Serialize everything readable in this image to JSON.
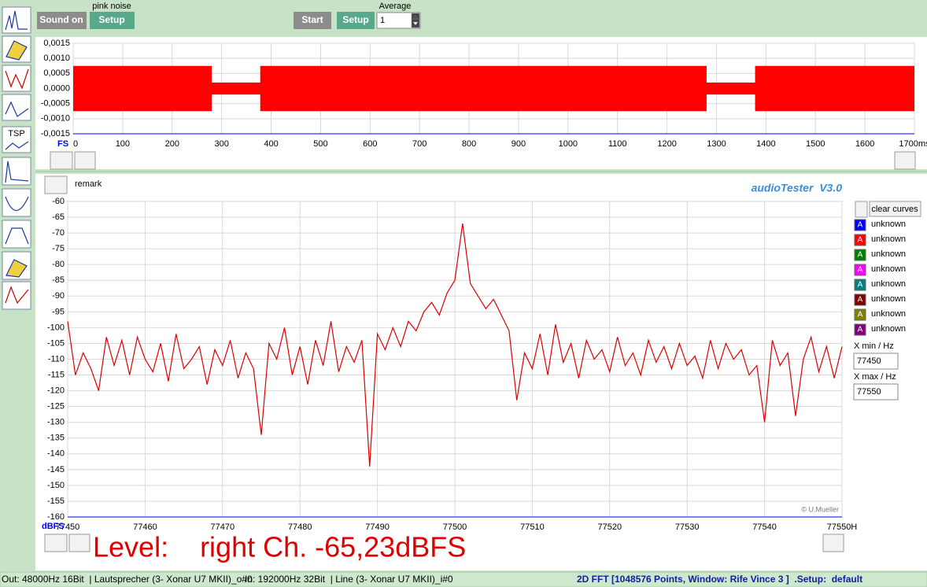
{
  "toolbar": {
    "sound_button": "Sound on",
    "generator_label": "pink noise",
    "generator_setup": "Setup",
    "start_button": "Start",
    "average_setup": "Setup",
    "average_label": "Average",
    "average_value": "1",
    "tsp_icon": "TSP"
  },
  "remark": "remark",
  "app_title": "audioTester  V3.0",
  "clear_button": "clear curves",
  "curve_icon": "A",
  "curves": [
    {
      "label": "unknown",
      "color": "#0000ff"
    },
    {
      "label": "unknown",
      "color": "#ff0000"
    },
    {
      "label": "unknown",
      "color": "#008000"
    },
    {
      "label": "unknown",
      "color": "#ff00ff"
    },
    {
      "label": "unknown",
      "color": "#008080"
    },
    {
      "label": "unknown",
      "color": "#800000"
    },
    {
      "label": "unknown",
      "color": "#808000"
    },
    {
      "label": "unknown",
      "color": "#800080"
    }
  ],
  "x_min_label": "X min / Hz",
  "x_min": "77450",
  "x_max_label": "X max / Hz",
  "x_max": "77550",
  "copyright": "© U.Mueller",
  "level_readout": "Level:    right Ch. -65,23dBFS",
  "status": {
    "output": "Out: 48000Hz 16Bit  | Lautsprecher (3- Xonar U7 MKII)_o#0",
    "input": "In: 192000Hz 32Bit  | Line (3- Xonar U7 MKII)_i#0",
    "fft": "2D FFT [1048576 Points, Window: Rife Vince 3 ]  .Setup:  default"
  },
  "chart_data": [
    {
      "type": "area",
      "xlabel": "FS",
      "xlim": [
        0,
        1700
      ],
      "ylim": [
        -0.0015,
        0.0015
      ],
      "grid": true,
      "xticks": [
        0,
        100,
        200,
        300,
        400,
        500,
        600,
        700,
        800,
        900,
        1000,
        1100,
        1200,
        1300,
        1400,
        1500,
        1600,
        {
          "value": 1700,
          "label": "1700ms"
        }
      ],
      "yticks": [
        {
          "value": 0.0015,
          "label": "0,0015"
        },
        {
          "value": 0.001,
          "label": "0,0010"
        },
        {
          "value": 0.0005,
          "label": "0,0005"
        },
        {
          "value": 0,
          "label": "0,0000"
        },
        {
          "value": -0.0005,
          "label": "-0,0005"
        },
        {
          "value": -0.001,
          "label": "-0,0010"
        },
        {
          "value": -0.0015,
          "label": "-0,0015"
        }
      ],
      "x": [
        0,
        280,
        280,
        378,
        378,
        1280,
        1280,
        1378,
        1378,
        1700
      ],
      "series": [
        {
          "color": "#ff0000",
          "values": [
            0.00075,
            0.00075,
            0.0002,
            0.0002,
            0.00075,
            0.00075,
            0.0002,
            0.0002,
            0.00075,
            0.00075
          ]
        },
        {
          "color": "#ff0000",
          "values": [
            -0.00075,
            -0.00075,
            -0.0002,
            -0.0002,
            -0.00075,
            -0.00075,
            -0.0002,
            -0.0002,
            -0.00075,
            -0.00075
          ]
        }
      ]
    },
    {
      "type": "line",
      "ylabel": "dBFS",
      "xlim": [
        77450,
        77550
      ],
      "ylim": [
        -160,
        -60
      ],
      "grid": true,
      "color": "#dd0000",
      "xticks": [
        77450,
        77460,
        77470,
        77480,
        77490,
        77500,
        77510,
        77520,
        77530,
        77540,
        {
          "value": 77550,
          "label": "77550H"
        }
      ],
      "yticks": [
        -60,
        -65,
        -70,
        -75,
        -80,
        -85,
        -90,
        -95,
        -100,
        -105,
        -110,
        -115,
        -120,
        -125,
        -130,
        -135,
        -140,
        -145,
        -150,
        -155,
        -160
      ],
      "x": [
        77450,
        77451,
        77452,
        77453,
        77454,
        77455,
        77456,
        77457,
        77458,
        77459,
        77460,
        77461,
        77462,
        77463,
        77464,
        77465,
        77466,
        77467,
        77468,
        77469,
        77470,
        77471,
        77472,
        77473,
        77474,
        77475,
        77476,
        77477,
        77478,
        77479,
        77480,
        77481,
        77482,
        77483,
        77484,
        77485,
        77486,
        77487,
        77488,
        77489,
        77490,
        77491,
        77492,
        77493,
        77494,
        77495,
        77496,
        77497,
        77498,
        77499,
        77500,
        77501,
        77502,
        77503,
        77504,
        77505,
        77506,
        77507,
        77508,
        77509,
        77510,
        77511,
        77512,
        77513,
        77514,
        77515,
        77516,
        77517,
        77518,
        77519,
        77520,
        77521,
        77522,
        77523,
        77524,
        77525,
        77526,
        77527,
        77528,
        77529,
        77530,
        77531,
        77532,
        77533,
        77534,
        77535,
        77536,
        77537,
        77538,
        77539,
        77540,
        77541,
        77542,
        77543,
        77544,
        77545,
        77546,
        77547,
        77548,
        77549,
        77550
      ],
      "values": [
        -98,
        -115,
        -108,
        -113,
        -120,
        -103,
        -112,
        -104,
        -115,
        -103,
        -110,
        -114,
        -105,
        -117,
        -102,
        -113,
        -110,
        -106,
        -118,
        -107,
        -112,
        -104,
        -116,
        -108,
        -113,
        -134,
        -105,
        -110,
        -100,
        -115,
        -106,
        -118,
        -104,
        -112,
        -98,
        -114,
        -106,
        -111,
        -104,
        -144,
        -102,
        -107,
        -100,
        -106,
        -98,
        -101,
        -95,
        -92,
        -96,
        -89,
        -85,
        -67,
        -86,
        -90,
        -94,
        -91,
        -96,
        -101,
        -123,
        -108,
        -113,
        -102,
        -115,
        -99,
        -111,
        -105,
        -116,
        -104,
        -110,
        -107,
        -114,
        -103,
        -112,
        -108,
        -115,
        -104,
        -111,
        -106,
        -113,
        -105,
        -112,
        -109,
        -116,
        -104,
        -113,
        -105,
        -110,
        -107,
        -115,
        -112,
        -130,
        -104,
        -112,
        -108,
        -128,
        -110,
        -103,
        -114,
        -106,
        -116,
        -106
      ]
    }
  ]
}
